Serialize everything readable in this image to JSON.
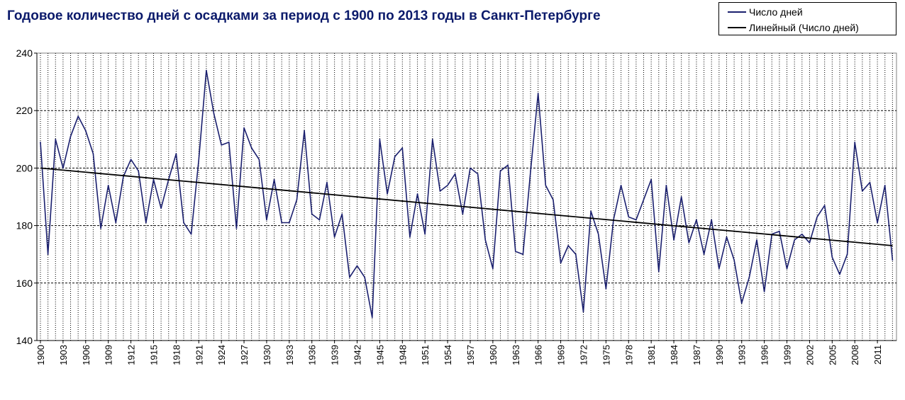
{
  "chart_data": {
    "type": "line",
    "title": "Годовое количество дней с осадками за период с 1900 по 2013 годы в Санкт-Петербурге",
    "x": [
      1900,
      1901,
      1902,
      1903,
      1904,
      1905,
      1906,
      1907,
      1908,
      1909,
      1910,
      1911,
      1912,
      1913,
      1914,
      1915,
      1916,
      1917,
      1918,
      1919,
      1920,
      1921,
      1922,
      1923,
      1924,
      1925,
      1926,
      1927,
      1928,
      1929,
      1930,
      1931,
      1932,
      1933,
      1934,
      1935,
      1936,
      1937,
      1938,
      1939,
      1940,
      1941,
      1942,
      1943,
      1944,
      1945,
      1946,
      1947,
      1948,
      1949,
      1950,
      1951,
      1952,
      1953,
      1954,
      1955,
      1956,
      1957,
      1958,
      1959,
      1960,
      1961,
      1962,
      1963,
      1964,
      1965,
      1966,
      1967,
      1968,
      1969,
      1970,
      1971,
      1972,
      1973,
      1974,
      1975,
      1976,
      1977,
      1978,
      1979,
      1980,
      1981,
      1982,
      1983,
      1984,
      1985,
      1986,
      1987,
      1988,
      1989,
      1990,
      1991,
      1992,
      1993,
      1994,
      1995,
      1996,
      1997,
      1998,
      1999,
      2000,
      2001,
      2002,
      2003,
      2004,
      2005,
      2006,
      2007,
      2008,
      2009,
      2010,
      2011,
      2012,
      2013
    ],
    "xtick_labels": [
      "1900",
      "1903",
      "1906",
      "1909",
      "1912",
      "1915",
      "1918",
      "1921",
      "1924",
      "1927",
      "1930",
      "1933",
      "1936",
      "1939",
      "1942",
      "1945",
      "1948",
      "1951",
      "1954",
      "1957",
      "1960",
      "1963",
      "1966",
      "1969",
      "1972",
      "1975",
      "1978",
      "1981",
      "1984",
      "1987",
      "1990",
      "1993",
      "1996",
      "1999",
      "2002",
      "2005",
      "2008",
      "2011"
    ],
    "series": [
      {
        "name": "Число дней",
        "color": "#1a1f6e",
        "values": [
          209,
          170,
          210,
          200,
          211,
          218,
          213,
          205,
          179,
          194,
          181,
          197,
          203,
          199,
          181,
          196,
          186,
          196,
          205,
          181,
          177,
          203,
          234,
          219,
          208,
          209,
          179,
          214,
          207,
          203,
          182,
          196,
          181,
          181,
          189,
          213,
          184,
          182,
          195,
          176,
          184,
          162,
          166,
          162,
          148,
          210,
          191,
          204,
          207,
          176,
          191,
          177,
          210,
          192,
          194,
          198,
          184,
          200,
          198,
          175,
          165,
          199,
          201,
          171,
          170,
          199,
          226,
          194,
          189,
          167,
          173,
          170,
          150,
          185,
          177,
          158,
          182,
          194,
          183,
          182,
          189,
          196,
          164,
          194,
          175,
          190,
          174,
          182,
          170,
          182,
          165,
          176,
          168,
          153,
          162,
          175,
          157,
          177,
          178,
          165,
          175,
          177,
          174,
          183,
          187,
          169,
          163,
          170,
          209,
          192,
          195,
          181,
          194,
          168
        ]
      },
      {
        "name": "Линейный (Число дней)",
        "color": "#000000",
        "trendline": true,
        "values_start_end": [
          200,
          173
        ]
      }
    ],
    "ylim": [
      140,
      240
    ],
    "yticks": [
      140,
      160,
      180,
      200,
      220,
      240
    ],
    "xlabel": "",
    "ylabel": "",
    "grid": true,
    "legend_position": "top-right"
  }
}
